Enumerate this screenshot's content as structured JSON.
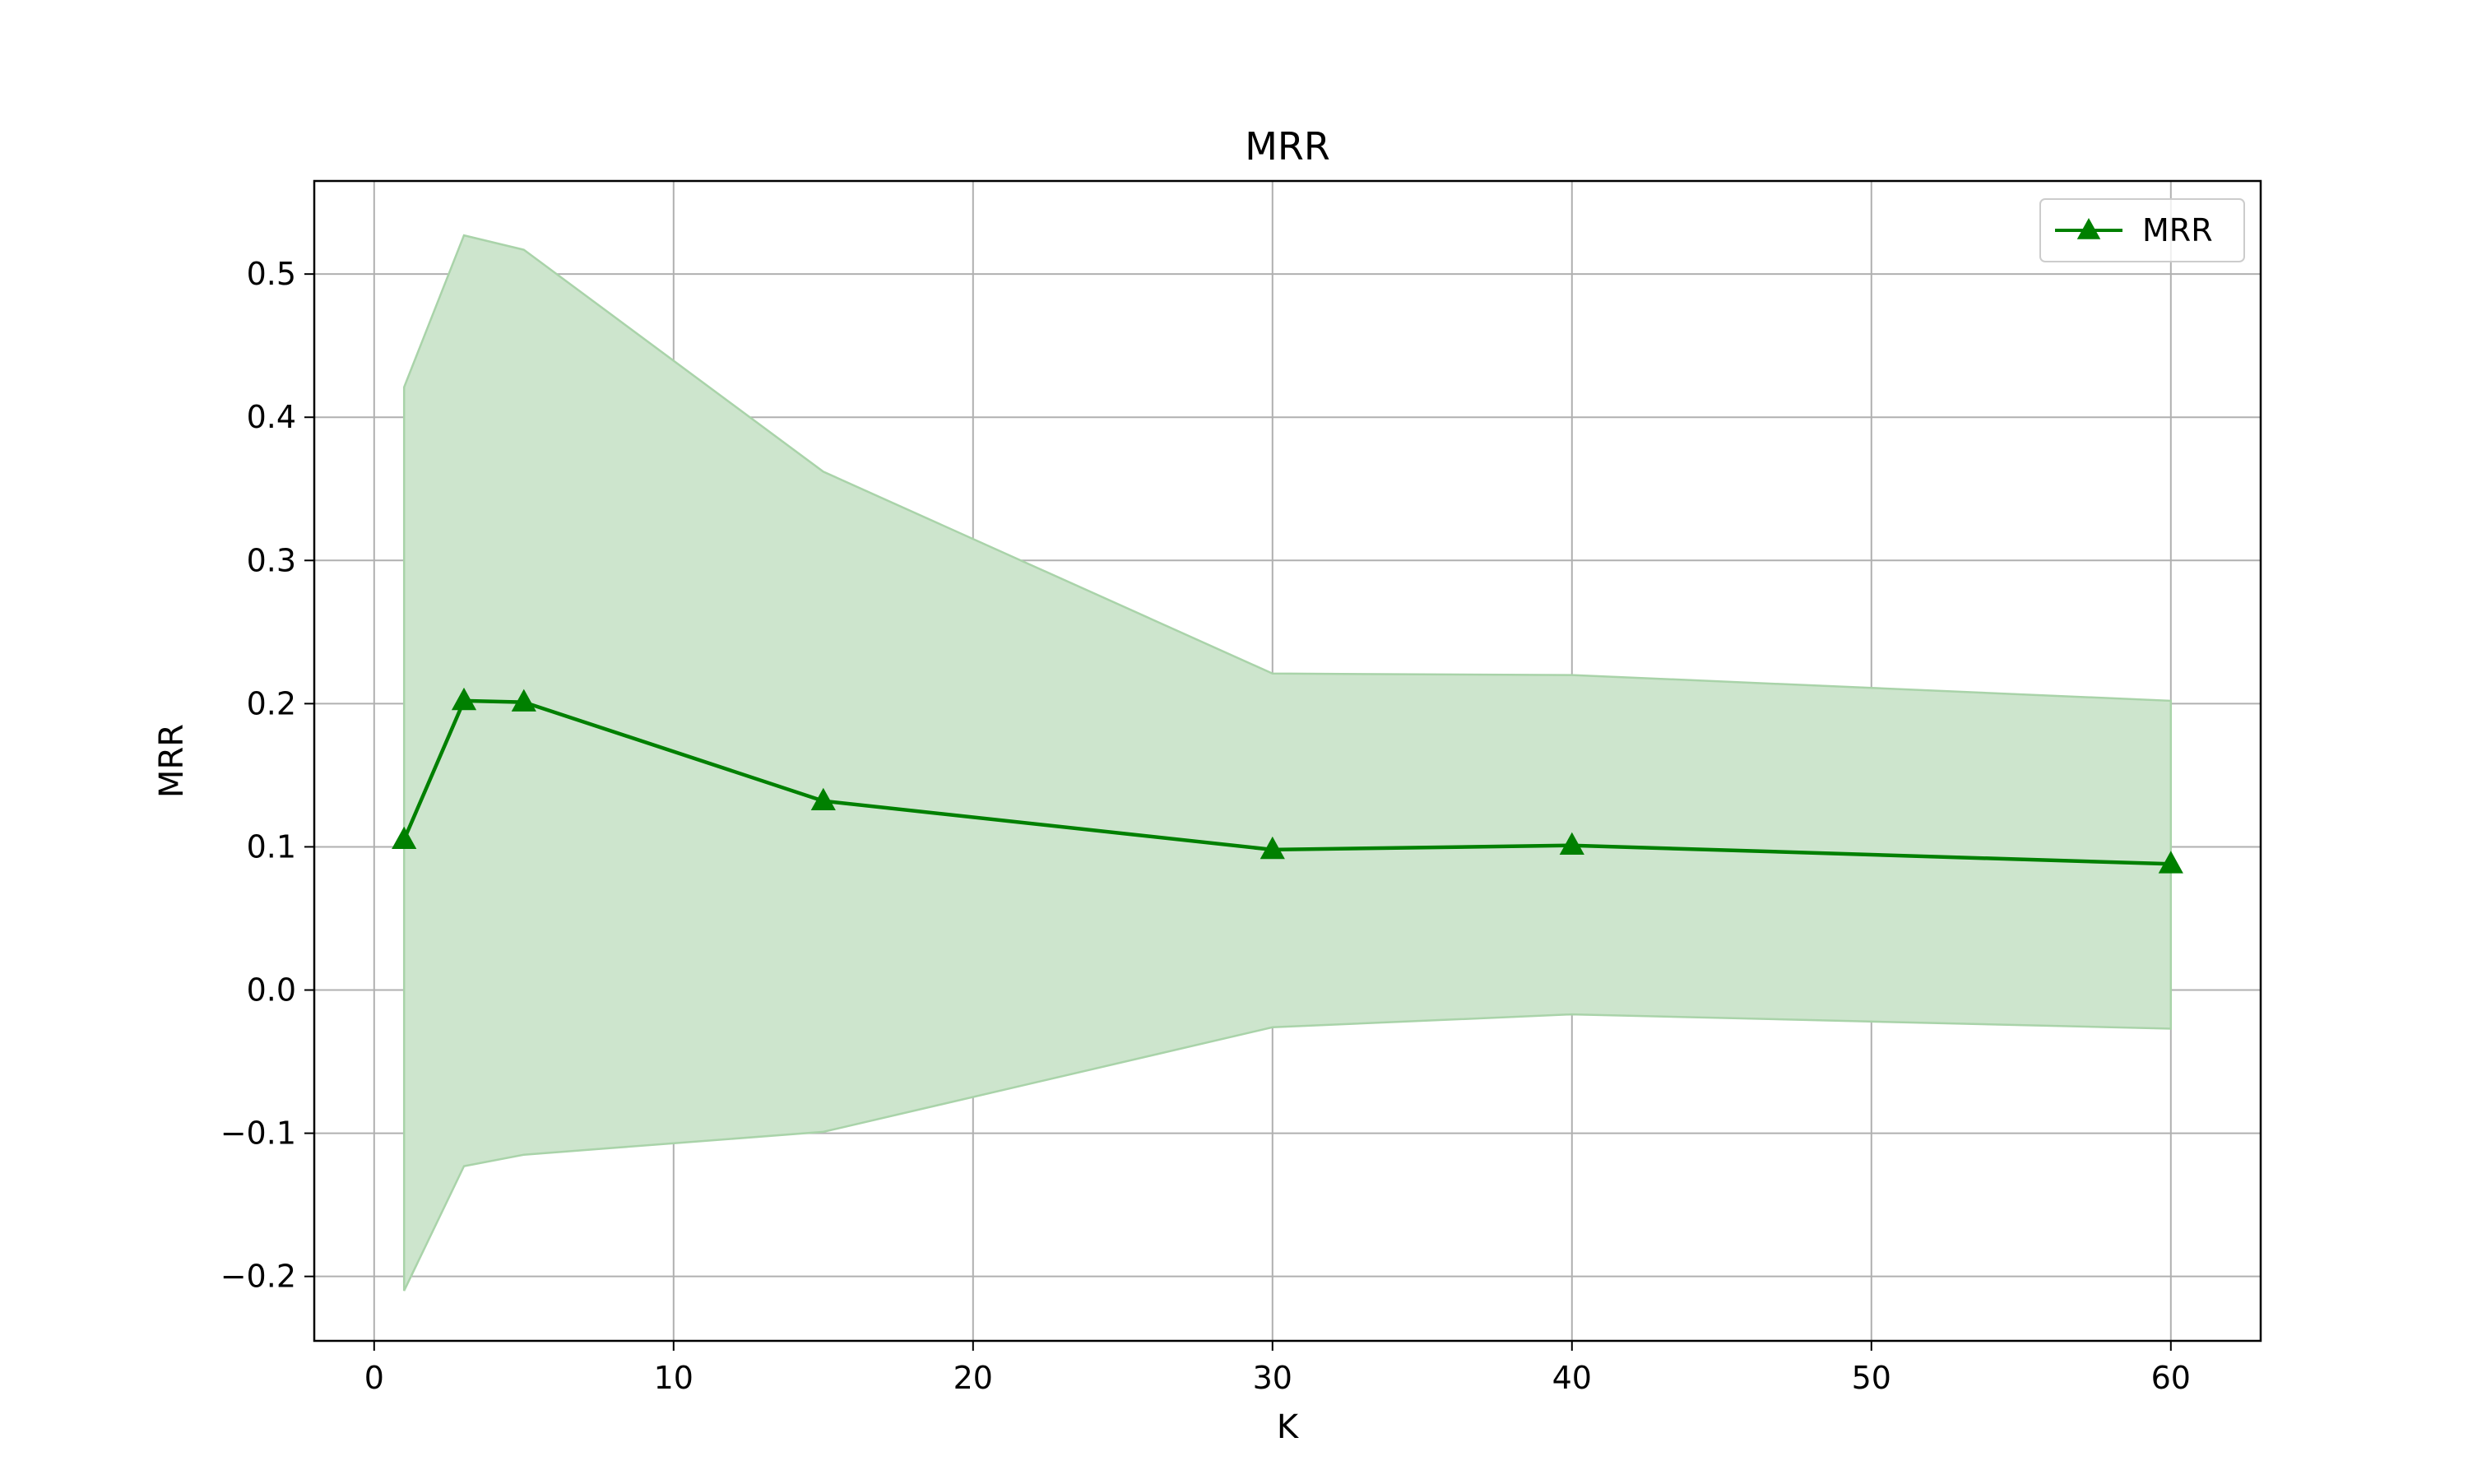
{
  "chart_data": {
    "type": "line",
    "title": "MRR",
    "xlabel": "K",
    "ylabel": "MRR",
    "xlim": [
      -2,
      63
    ],
    "ylim": [
      -0.245,
      0.565
    ],
    "x_ticks": [
      0,
      10,
      20,
      30,
      40,
      50,
      60
    ],
    "x_tick_labels": [
      "0",
      "10",
      "20",
      "30",
      "40",
      "50",
      "60"
    ],
    "y_ticks": [
      -0.2,
      -0.1,
      0.0,
      0.1,
      0.2,
      0.3,
      0.4,
      0.5
    ],
    "y_tick_labels": [
      "−0.2",
      "−0.1",
      "0.0",
      "0.1",
      "0.2",
      "0.3",
      "0.4",
      "0.5"
    ],
    "grid": true,
    "legend_position": "upper right",
    "series": [
      {
        "name": "MRR",
        "color": "#008000",
        "band_color": "#cde5cd",
        "band_edge_color": "#a9d3a9",
        "marker": "triangle-up",
        "x": [
          1,
          3,
          5,
          15,
          30,
          40,
          60
        ],
        "values": [
          0.105,
          0.202,
          0.201,
          0.132,
          0.098,
          0.101,
          0.088
        ],
        "upper": [
          0.421,
          0.527,
          0.517,
          0.362,
          0.221,
          0.22,
          0.202
        ],
        "lower": [
          -0.21,
          -0.123,
          -0.115,
          -0.099,
          -0.026,
          -0.017,
          -0.027
        ]
      }
    ]
  }
}
